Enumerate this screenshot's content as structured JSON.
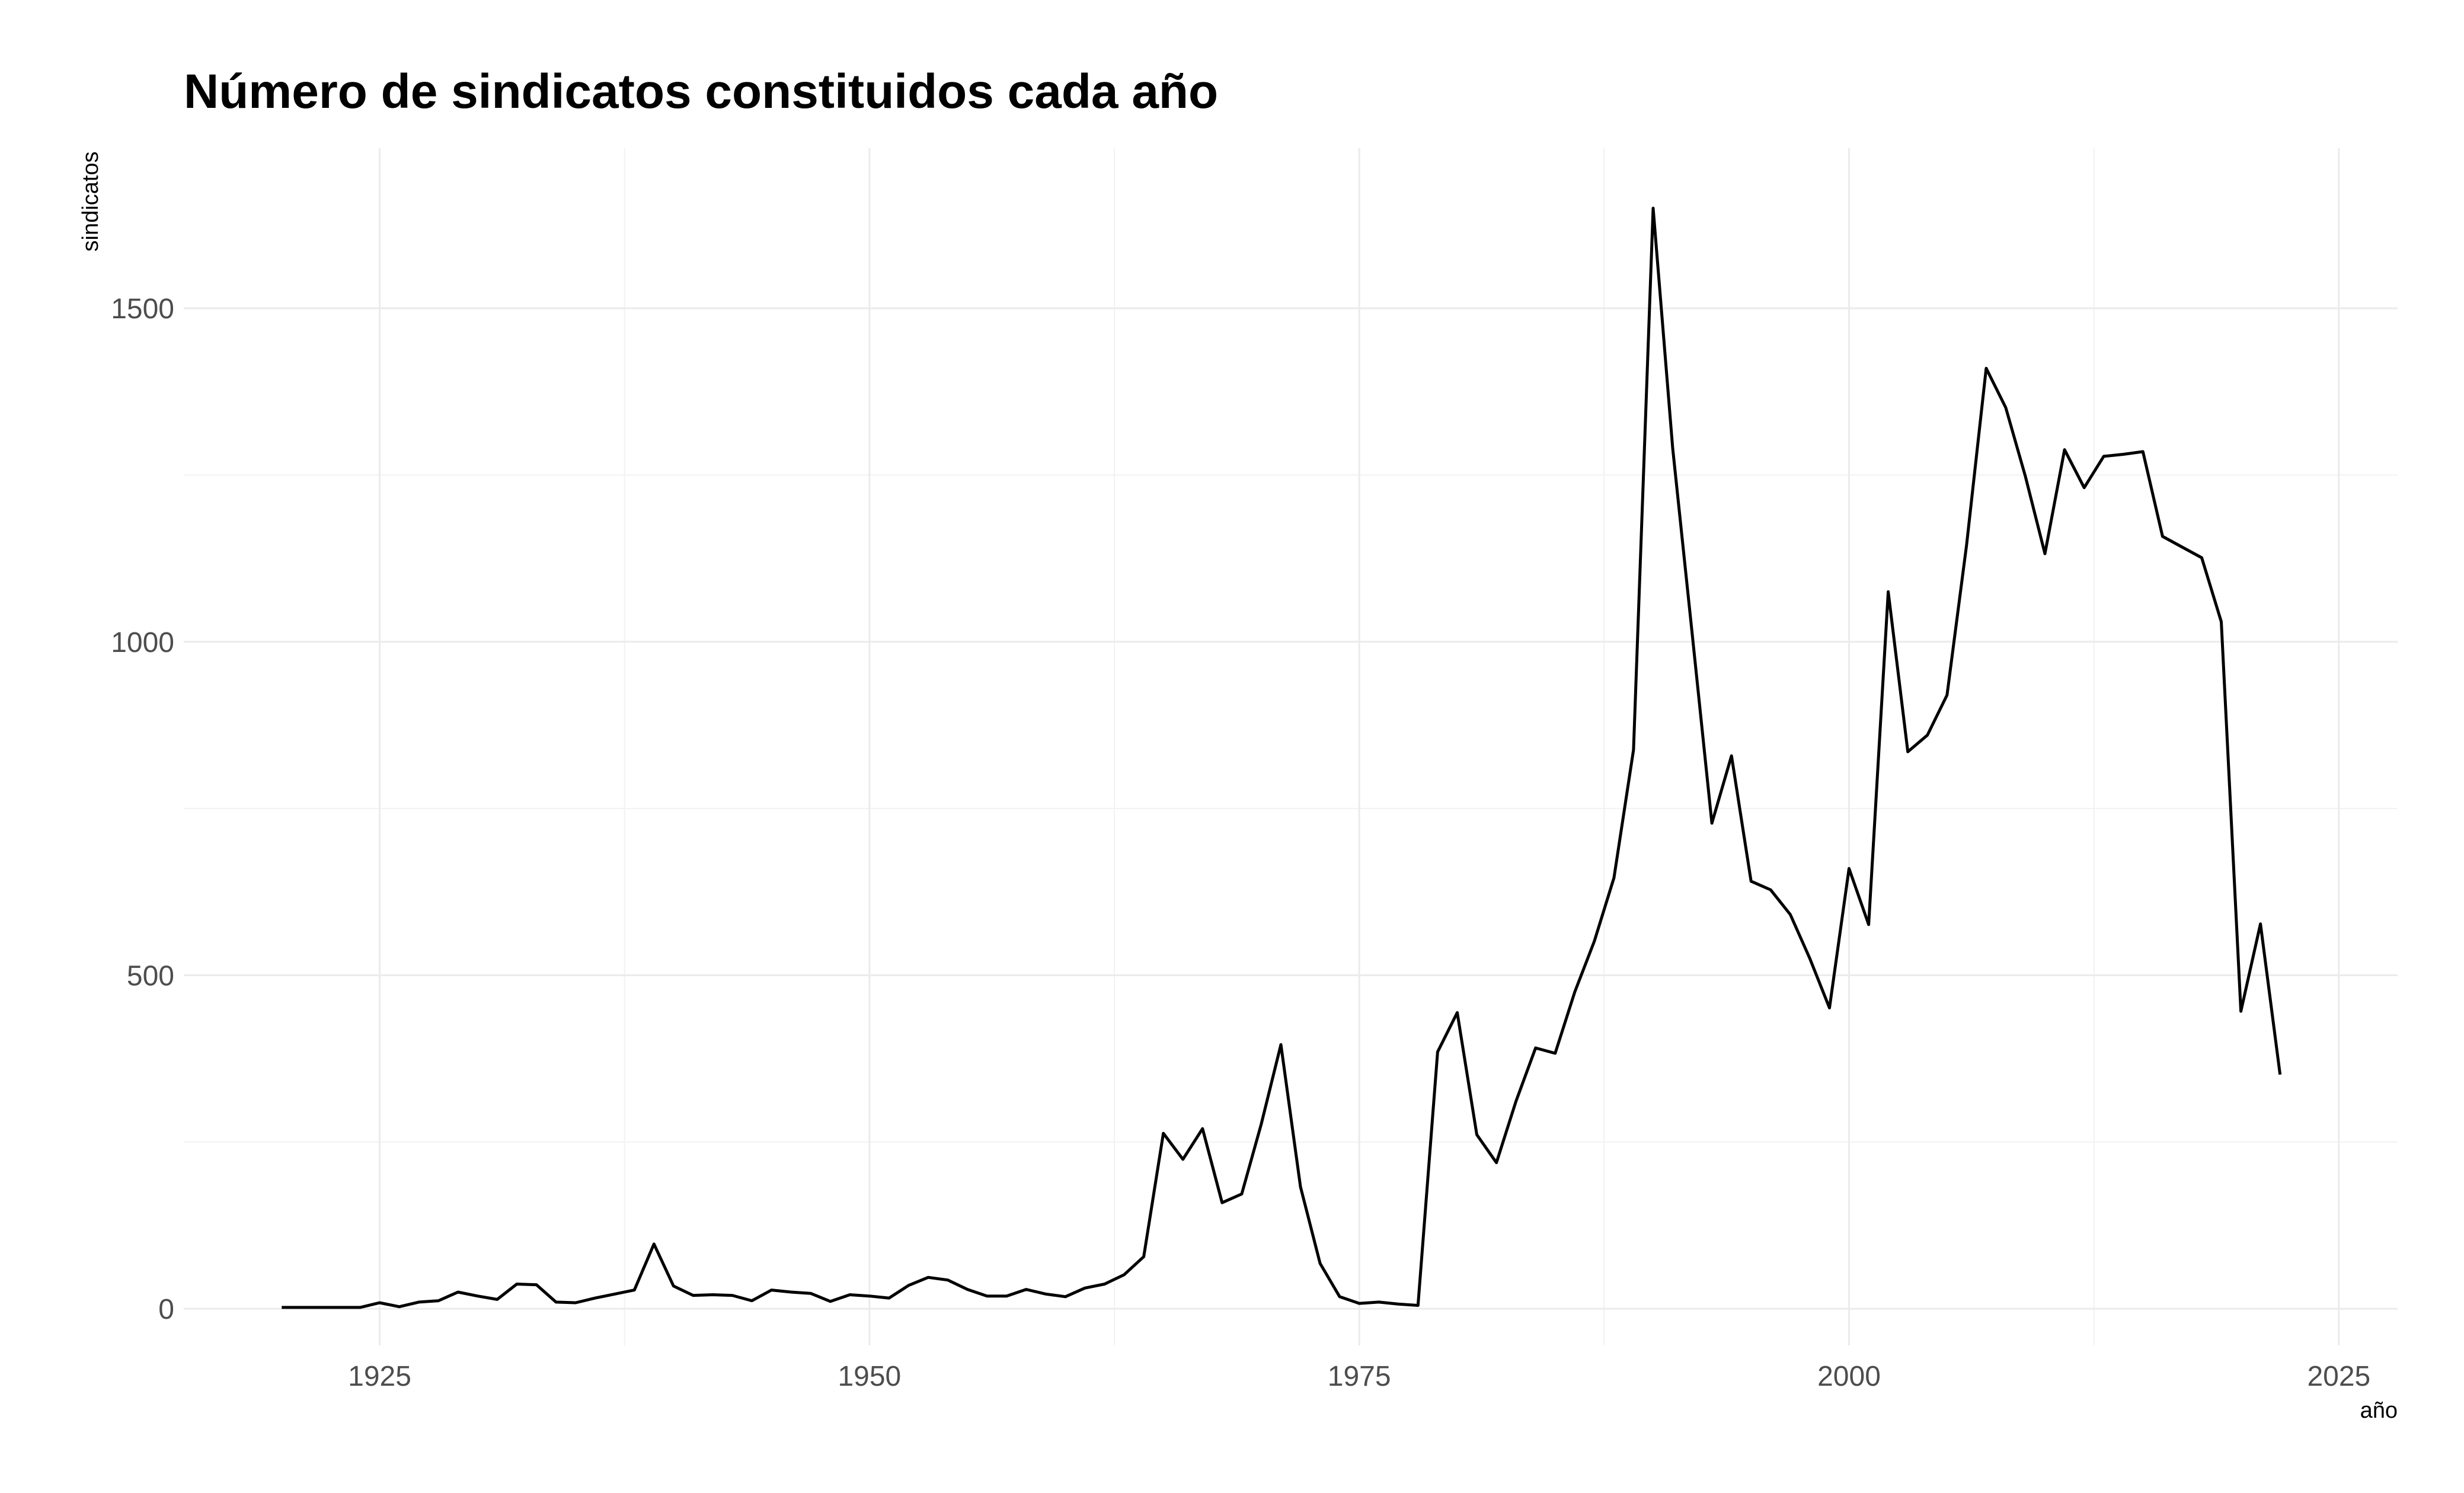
{
  "chart_data": {
    "type": "line",
    "title": "Número de sindicatos constituidos cada año",
    "xlabel": "año",
    "ylabel": "sindicatos",
    "xlim": [
      1915,
      2028
    ],
    "ylim": [
      -55,
      1740
    ],
    "x_ticks": [
      1925,
      1950,
      1975,
      2000,
      2025
    ],
    "y_ticks": [
      0,
      500,
      1000,
      1500
    ],
    "grid": true,
    "legend": "none",
    "series": [
      {
        "x": [
          1920,
          1921,
          1922,
          1923,
          1924,
          1925,
          1926,
          1927,
          1928,
          1929,
          1930,
          1931,
          1932,
          1933,
          1934,
          1935,
          1936,
          1937,
          1938,
          1939,
          1940,
          1941,
          1942,
          1943,
          1944,
          1945,
          1946,
          1947,
          1948,
          1949,
          1950,
          1951,
          1952,
          1953,
          1954,
          1955,
          1956,
          1957,
          1958,
          1959,
          1960,
          1961,
          1962,
          1963,
          1964,
          1965,
          1966,
          1967,
          1968,
          1969,
          1970,
          1971,
          1972,
          1973,
          1974,
          1975,
          1976,
          1977,
          1978,
          1979,
          1980,
          1981,
          1982,
          1983,
          1984,
          1985,
          1986,
          1987,
          1988,
          1989,
          1990,
          1991,
          1992,
          1993,
          1994,
          1995,
          1996,
          1997,
          1998,
          1999,
          2000,
          2001,
          2002,
          2003,
          2004,
          2005,
          2006,
          2007,
          2008,
          2009,
          2010,
          2011,
          2012,
          2013,
          2014,
          2015,
          2016,
          2017,
          2018,
          2019,
          2020,
          2021,
          2022
        ],
        "y": [
          2,
          2,
          2,
          2,
          2,
          9,
          3,
          10,
          12,
          25,
          19,
          14,
          37,
          36,
          10,
          9,
          16,
          22,
          28,
          97,
          34,
          20,
          21,
          20,
          12,
          28,
          25,
          23,
          11,
          21,
          19,
          16,
          35,
          47,
          43,
          29,
          19,
          19,
          29,
          22,
          18,
          31,
          37,
          51,
          78,
          263,
          224,
          270,
          159,
          172,
          277,
          396,
          183,
          68,
          18,
          8,
          10,
          7,
          5,
          385,
          444,
          261,
          219,
          311,
          391,
          383,
          475,
          551,
          646,
          838,
          1650,
          1290,
          1010,
          728,
          829,
          641,
          628,
          591,
          525,
          451,
          660,
          576,
          1075,
          835,
          860,
          920,
          1145,
          1410,
          1351,
          1248,
          1132,
          1288,
          1231,
          1278,
          1281,
          1285,
          1158,
          1142,
          1126,
          1030,
          446,
          577,
          351
        ]
      }
    ]
  }
}
